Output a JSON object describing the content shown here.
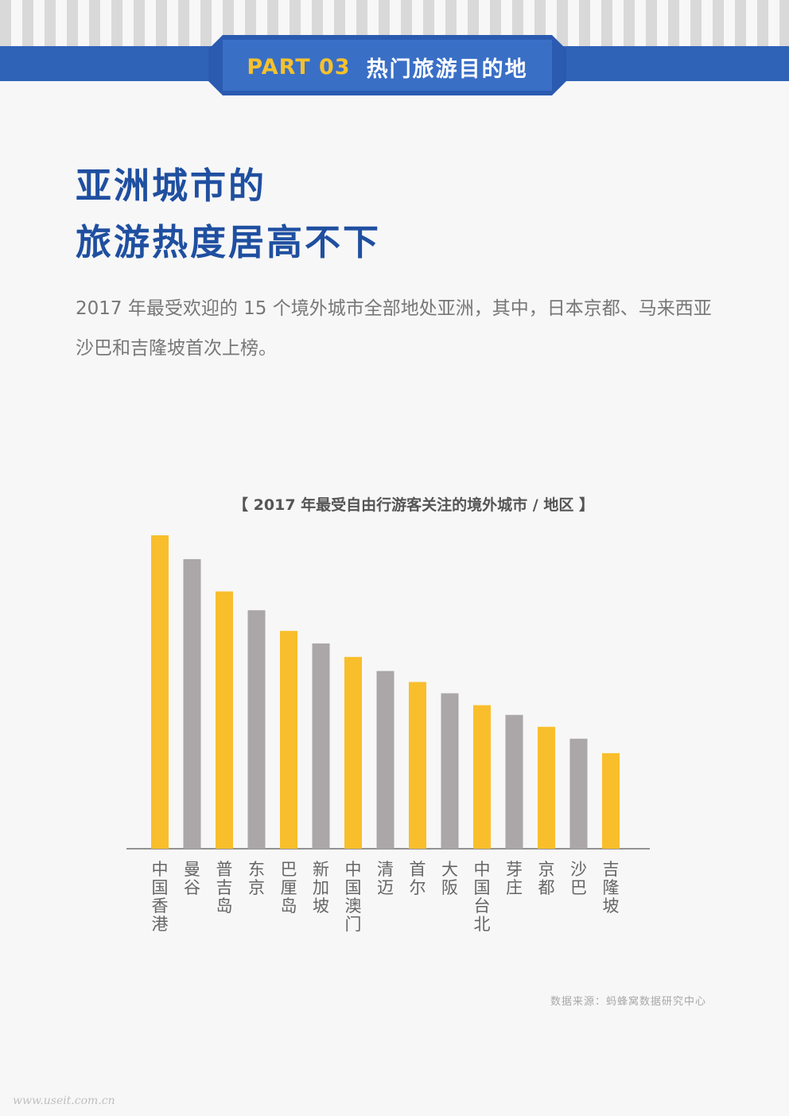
{
  "header": {
    "part_label": "PART 03",
    "section_title": "热门旅游目的地"
  },
  "headline": {
    "line1": "亚洲城市的",
    "line2": "旅游热度居高不下"
  },
  "intro_text": "2017 年最受欢迎的 15 个境外城市全部地处亚洲，其中，日本京都、马来西亚沙巴和吉隆坡首次上榜。",
  "source_text": "数据来源：蚂蜂窝数据研究中心",
  "watermark_text": "www.useit.com.cn",
  "colors": {
    "accent_blue": "#2f63b8",
    "highlight_yellow": "#f6c12c",
    "bar_yellow": "#f9be2b",
    "bar_gray": "#aba6a7"
  },
  "chart_data": {
    "type": "bar",
    "title": "【 2017 年最受自由行游客关注的境外城市 / 地区 】",
    "categories": [
      "中国香港",
      "曼谷",
      "普吉岛",
      "东京",
      "巴厘岛",
      "新加坡",
      "中国澳门",
      "清迈",
      "首尔",
      "大阪",
      "中国台北",
      "芽庄",
      "京都",
      "沙巴",
      "吉隆坡"
    ],
    "values": [
      100,
      92.4,
      82.1,
      76.1,
      69.5,
      65.5,
      61.2,
      56.7,
      53.2,
      49.6,
      45.8,
      42.7,
      38.9,
      35.1,
      30.5
    ],
    "colors": [
      "#f9be2b",
      "#aba6a7",
      "#f9be2b",
      "#aba6a7",
      "#f9be2b",
      "#aba6a7",
      "#f9be2b",
      "#aba6a7",
      "#f9be2b",
      "#aba6a7",
      "#f9be2b",
      "#aba6a7",
      "#f9be2b",
      "#aba6a7",
      "#f9be2b"
    ],
    "ylim": [
      0,
      100
    ],
    "grid": false,
    "value_axis_shown": false
  }
}
